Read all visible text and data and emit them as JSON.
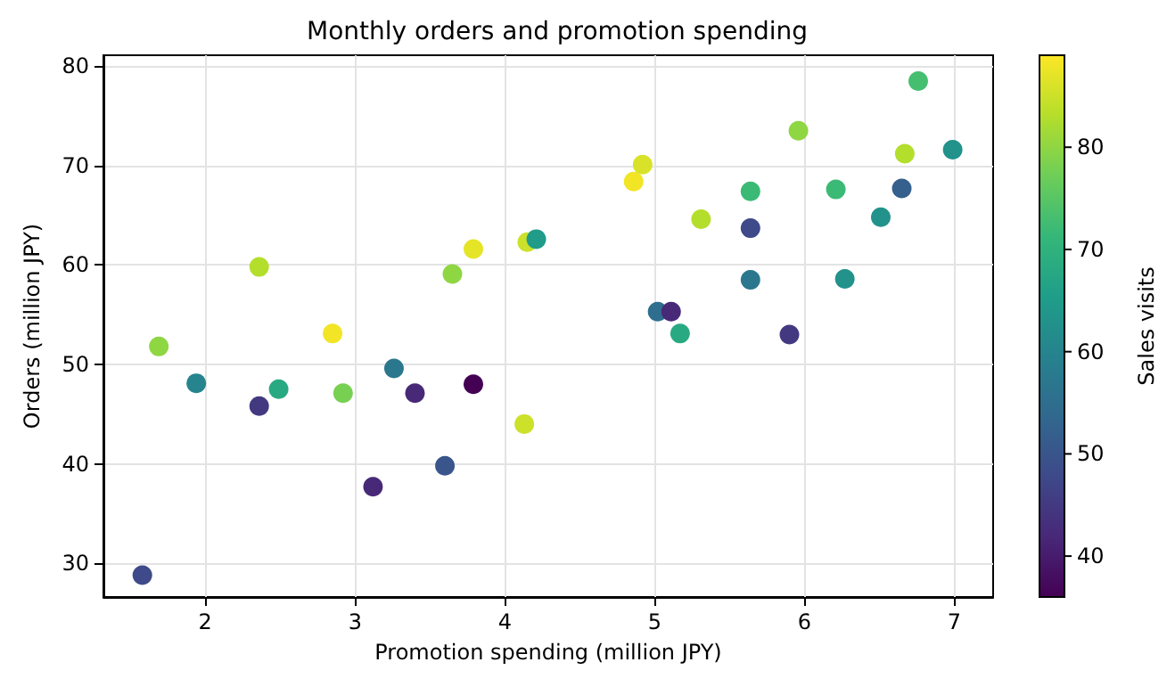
{
  "chart_data": {
    "type": "scatter",
    "title": "Monthly orders and promotion spending",
    "xlabel": "Promotion spending (million JPY)",
    "ylabel": "Orders (million JPY)",
    "clabel": "Sales visits",
    "x": [
      1.58,
      1.69,
      1.94,
      2.36,
      2.36,
      2.49,
      2.85,
      2.92,
      3.12,
      3.26,
      3.4,
      3.6,
      3.65,
      3.79,
      3.79,
      4.13,
      4.15,
      4.21,
      4.86,
      4.92,
      5.02,
      5.11,
      5.17,
      5.31,
      5.64,
      5.64,
      5.64,
      5.9,
      5.96,
      6.21,
      6.51,
      6.27,
      6.65,
      6.67,
      6.76,
      6.99
    ],
    "values": [
      28.8,
      51.8,
      48.1,
      45.8,
      59.8,
      47.5,
      53.1,
      47.1,
      37.7,
      49.6,
      47.1,
      39.8,
      59.1,
      61.6,
      48.0,
      44.0,
      62.3,
      62.6,
      68.4,
      70.1,
      55.3,
      55.3,
      53.1,
      64.6,
      67.4,
      63.7,
      58.5,
      53.0,
      73.5,
      67.6,
      64.8,
      58.6,
      67.7,
      71.2,
      78.5,
      71.6
    ],
    "cvalues": [
      48,
      80,
      60,
      45,
      83,
      68,
      88,
      78,
      42,
      57,
      42,
      50,
      80,
      87,
      36,
      85,
      85,
      65,
      88,
      86,
      55,
      42,
      68,
      83,
      72,
      48,
      57,
      45,
      80,
      72,
      63,
      63,
      52,
      83,
      73,
      63
    ],
    "clim": [
      36,
      89
    ],
    "cticks": [
      40,
      50,
      60,
      70,
      80
    ],
    "xlim": [
      1.32,
      7.26
    ],
    "xticks": [
      2,
      3,
      4,
      5,
      6,
      7
    ],
    "ylim": [
      26.6,
      81.1
    ],
    "yticks": [
      30,
      40,
      50,
      60,
      70,
      80
    ],
    "grid": true,
    "marker": "circle"
  }
}
